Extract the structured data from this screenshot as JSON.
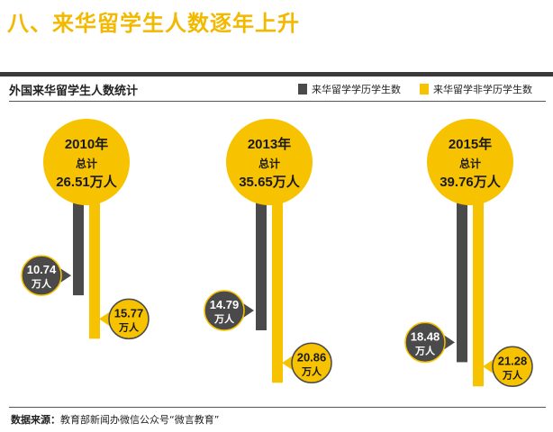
{
  "heading": "八、来华留学生人数逐年上升",
  "subtitle": "外国来华留学生人数统计",
  "legend": {
    "degree": "来华留学学历学生数",
    "non_degree": "来华留学非学历学生数"
  },
  "source": {
    "label": "数据来源：",
    "text": "教育部新闻办微信公众号“微言教育”"
  },
  "colors": {
    "accent": "#f7c200",
    "accent_text": "#f2b900",
    "dark": "#4a4a4a",
    "thick_rule": "#3a3a3a"
  },
  "chart_data": {
    "type": "bar",
    "unit": "万人",
    "total_label": "总计",
    "categories": [
      "2010年",
      "2013年",
      "2015年"
    ],
    "totals": [
      "26.51万人",
      "35.65万人",
      "39.76万人"
    ],
    "series": [
      {
        "name": "来华留学学历学生数",
        "values": [
          10.74,
          14.79,
          18.48
        ],
        "labels": [
          "10.74",
          "14.79",
          "18.48"
        ]
      },
      {
        "name": "来华留学非学历学生数",
        "values": [
          15.77,
          20.86,
          21.28
        ],
        "labels": [
          "15.77",
          "20.86",
          "21.28"
        ]
      }
    ]
  }
}
